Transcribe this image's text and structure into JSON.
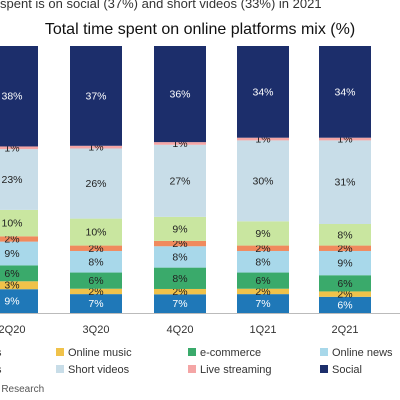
{
  "headline": "spent is on social (37%) and short videos (33%) in 2021",
  "source": "ey Research",
  "chart_data": {
    "type": "bar",
    "stacked": true,
    "percent_labels": true,
    "title": "Total time spent on online platforms mix (%)",
    "categories": [
      "2Q20",
      "3Q20",
      "4Q20",
      "1Q21",
      "2Q21"
    ],
    "legend_position": "bottom",
    "grid": false,
    "series": [
      {
        "name": "",
        "color": "#1f78b8",
        "values": [
          9,
          7,
          7,
          7,
          6
        ]
      },
      {
        "name": "Online music",
        "color": "#f0c24a",
        "values": [
          3,
          2,
          2,
          2,
          2
        ]
      },
      {
        "name": "e-commerce",
        "color": "#3aaa6b",
        "values": [
          6,
          6,
          8,
          6,
          6
        ]
      },
      {
        "name": "Online news",
        "color": "#a8d8ea",
        "values": [
          9,
          8,
          8,
          8,
          9
        ]
      },
      {
        "name": "",
        "color": "#f08a5d",
        "values": [
          2,
          2,
          2,
          2,
          2
        ]
      },
      {
        "name": "",
        "color": "#c9e6a0",
        "values": [
          10,
          10,
          9,
          9,
          8
        ]
      },
      {
        "name": "Short videos",
        "color": "#c8dde8",
        "values": [
          23,
          26,
          27,
          30,
          31
        ]
      },
      {
        "name": "Live streaming",
        "color": "#f4a5a5",
        "values": [
          1,
          1,
          1,
          1,
          1
        ]
      },
      {
        "name": "Social",
        "color": "#1c2e6b",
        "values": [
          38,
          37,
          36,
          34,
          34
        ]
      }
    ],
    "legend_fragments": [
      "s",
      "s"
    ]
  }
}
